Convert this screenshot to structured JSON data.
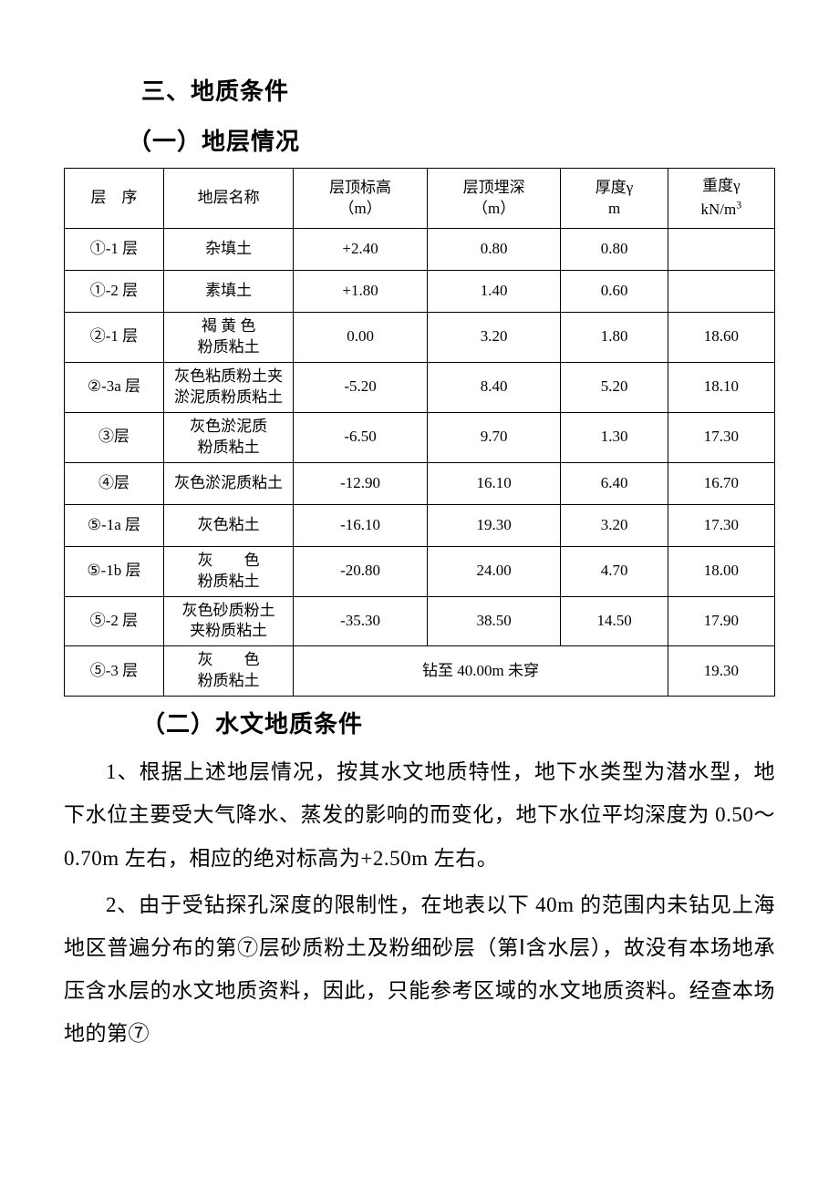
{
  "headings": {
    "section3": "三、地质条件",
    "sub1": "（一）地层情况",
    "sub2": "（二）水文地质条件"
  },
  "table": {
    "headers": {
      "c0": "层　序",
      "c1": "地层名称",
      "c2_line1": "层顶标高",
      "c2_line2": "（m）",
      "c3_line1": "层顶埋深",
      "c3_line2": "（m）",
      "c4_line1": "厚度γ",
      "c4_line2": "m",
      "c5_line1": "重度γ",
      "c5_line2_html": "kN/m³"
    },
    "rows": [
      {
        "c0": "①-1 层",
        "c1": "杂填土",
        "c2": "+2.40",
        "c3": "0.80",
        "c4": "0.80",
        "c5": ""
      },
      {
        "c0": "①-2 层",
        "c1": "素填土",
        "c2": "+1.80",
        "c3": "1.40",
        "c4": "0.60",
        "c5": ""
      },
      {
        "c0": "②-1 层",
        "c1_line1": "褐 黄 色",
        "c1_line2": "粉质粘土",
        "c2": "0.00",
        "c3": "3.20",
        "c4": "1.80",
        "c5": "18.60"
      },
      {
        "c0": "②-3a 层",
        "c1_line1": "灰色粘质粉土夹",
        "c1_line2": "淤泥质粉质粘土",
        "c2": "-5.20",
        "c3": "8.40",
        "c4": "5.20",
        "c5": "18.10"
      },
      {
        "c0": "③层",
        "c1_line1": "灰色淤泥质",
        "c1_line2": "粉质粘土",
        "c2": "-6.50",
        "c3": "9.70",
        "c4": "1.30",
        "c5": "17.30"
      },
      {
        "c0": "④层",
        "c1": "灰色淤泥质粘土",
        "c2": "-12.90",
        "c3": "16.10",
        "c4": "6.40",
        "c5": "16.70"
      },
      {
        "c0": "⑤-1a 层",
        "c1": "灰色粘土",
        "c2": "-16.10",
        "c3": "19.30",
        "c4": "3.20",
        "c5": "17.30"
      },
      {
        "c0": "⑤-1b 层",
        "c1_line1": "灰　　色",
        "c1_line2": "粉质粘土",
        "c2": "-20.80",
        "c3": "24.00",
        "c4": "4.70",
        "c5": "18.00"
      },
      {
        "c0": "⑤-2 层",
        "c1_line1": "灰色砂质粉土",
        "c1_line2": "夹粉质粘土",
        "c2": "-35.30",
        "c3": "38.50",
        "c4": "14.50",
        "c5": "17.90"
      },
      {
        "c0": "⑤-3 层",
        "c1_line1": "灰　　色",
        "c1_line2": "粉质粘土",
        "merged": "钻至 40.00m 未穿",
        "c5": "19.30"
      }
    ]
  },
  "paragraphs": {
    "p1": "1、根据上述地层情况，按其水文地质特性，地下水类型为潜水型，地下水位主要受大气降水、蒸发的影响的而变化，地下水位平均深度为 0.50～0.70m 左右，相应的绝对标高为+2.50m 左右。",
    "p2": "2、由于受钻探孔深度的限制性，在地表以下 40m 的范围内未钻见上海地区普遍分布的第⑦层砂质粉土及粉细砂层（第Ⅰ含水层），故没有本场地承压含水层的水文地质资料，因此，只能参考区域的水文地质资料。经查本场地的第⑦"
  }
}
